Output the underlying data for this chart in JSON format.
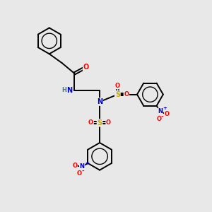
{
  "background_color": "#e8e8e8",
  "fig_size": [
    3.0,
    3.0
  ],
  "dpi": 100,
  "atom_colors": {
    "C": "#000000",
    "N": "#0000cc",
    "O": "#ff0000",
    "S": "#ccaa00",
    "H": "#4a7a8a"
  },
  "bond_color": "#000000",
  "bond_width": 1.4,
  "font_size": 7
}
